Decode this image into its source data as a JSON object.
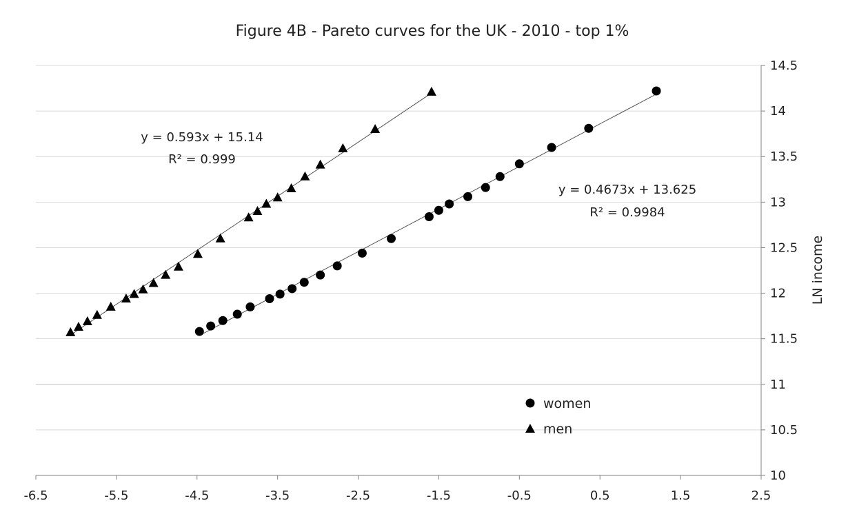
{
  "chart_data": {
    "type": "scatter",
    "title": "Figure 4B - Pareto curves for the UK - 2010 - top 1%",
    "xlabel": "",
    "ylabel": "LN income",
    "xlim": [
      -6.5,
      2.5
    ],
    "ylim": [
      10,
      14.5
    ],
    "x_ticks": [
      "-6.5",
      "-5.5",
      "-4.5",
      "-3.5",
      "-2.5",
      "-1.5",
      "-0.5",
      "0.5",
      "1.5",
      "2.5"
    ],
    "y_ticks": [
      "10",
      "10.5",
      "11",
      "11.5",
      "12",
      "12.5",
      "13",
      "13.5",
      "14",
      "14.5"
    ],
    "y_axis_position": "right",
    "grid": "horizontal",
    "legend_position": "bottom-right",
    "series": [
      {
        "name": "women",
        "marker": "circle",
        "color": "#000000",
        "x": [
          -4.47,
          -4.33,
          -4.18,
          -4.0,
          -3.84,
          -3.6,
          -3.47,
          -3.32,
          -3.17,
          -2.97,
          -2.76,
          -2.45,
          -2.09,
          -1.62,
          -1.5,
          -1.37,
          -1.14,
          -0.92,
          -0.74,
          -0.5,
          -0.1,
          0.36,
          1.2
        ],
        "y": [
          11.58,
          11.64,
          11.7,
          11.77,
          11.85,
          11.94,
          11.99,
          12.05,
          12.12,
          12.2,
          12.3,
          12.44,
          12.6,
          12.84,
          12.91,
          12.98,
          13.06,
          13.16,
          13.28,
          13.42,
          13.6,
          13.81,
          14.22
        ]
      },
      {
        "name": "men",
        "marker": "triangle",
        "color": "#000000",
        "x": [
          -6.07,
          -5.97,
          -5.86,
          -5.74,
          -5.57,
          -5.38,
          -5.28,
          -5.17,
          -5.04,
          -4.89,
          -4.73,
          -4.49,
          -4.21,
          -3.86,
          -3.75,
          -3.64,
          -3.5,
          -3.33,
          -3.16,
          -2.97,
          -2.69,
          -2.29,
          -1.59
        ],
        "y": [
          11.57,
          11.63,
          11.69,
          11.76,
          11.85,
          11.94,
          11.99,
          12.04,
          12.11,
          12.2,
          12.29,
          12.43,
          12.6,
          12.83,
          12.9,
          12.98,
          13.05,
          13.15,
          13.28,
          13.41,
          13.59,
          13.8,
          14.21
        ]
      }
    ],
    "trendlines": [
      {
        "series": "men",
        "slope": 0.593,
        "intercept": 15.14,
        "x_range": [
          -6.07,
          -1.59
        ],
        "equation": "y = 0.593x + 15.14",
        "r2": "R² = 0.999"
      },
      {
        "series": "women",
        "slope": 0.4673,
        "intercept": 13.625,
        "x_range": [
          -4.47,
          1.2
        ],
        "equation": "y = 0.4673x + 13.625",
        "r2": "R² = 0.9984"
      }
    ]
  }
}
